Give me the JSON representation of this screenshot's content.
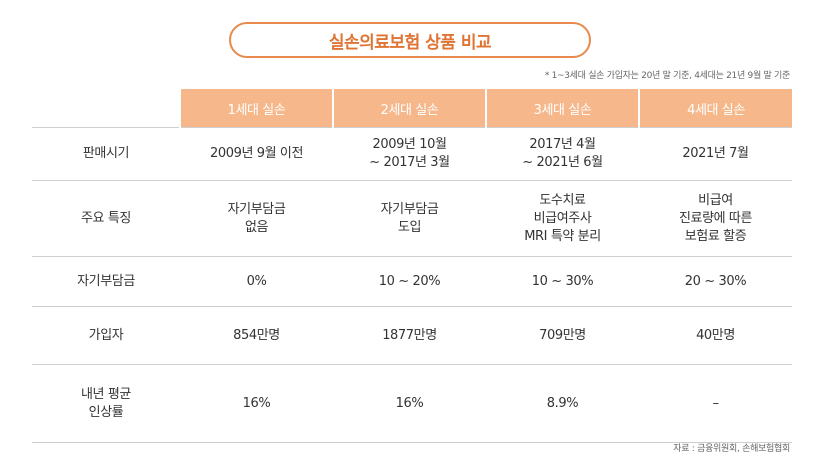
{
  "title": "실손의료보험 상품 비교",
  "note": "* 1~3세대 실손 가입자는 20년 말 기준, 4세대는 21년 9월 말 기준",
  "source": "자료 : 금융위원회, 손해보험협회",
  "headers": [
    "1세대 실손",
    "2세대 실손",
    "3세대 실손",
    "4세대 실손"
  ],
  "rows": [
    {
      "label": [
        "판매시기"
      ],
      "cells": [
        [
          "2009년 9월 이전"
        ],
        [
          "2009년 10월",
          "~ 2017년 3월"
        ],
        [
          "2017년 4월",
          "~ 2021년 6월"
        ],
        [
          "2021년 7월"
        ]
      ]
    },
    {
      "label": [
        "주요 특징"
      ],
      "cells": [
        [
          "자기부담금",
          "없음"
        ],
        [
          "자기부담금",
          "도입"
        ],
        [
          "도수치료",
          "비급여주사",
          "MRI 특약 분리"
        ],
        [
          "비급여",
          "진료량에 따른",
          "보험료 할증"
        ]
      ]
    },
    {
      "label": [
        "자기부담금"
      ],
      "cells": [
        [
          "0%"
        ],
        [
          "10 ~ 20%"
        ],
        [
          "10 ~ 30%"
        ],
        [
          "20 ~ 30%"
        ]
      ]
    },
    {
      "label": [
        "가입자"
      ],
      "cells": [
        [
          "854만명"
        ],
        [
          "1877만명"
        ],
        [
          "709만명"
        ],
        [
          "40만명"
        ]
      ]
    },
    {
      "label": [
        "내년 평균",
        "인상률"
      ],
      "cells": [
        [
          "16%"
        ],
        [
          "16%"
        ],
        [
          "8.9%"
        ],
        [
          "–"
        ]
      ]
    }
  ]
}
